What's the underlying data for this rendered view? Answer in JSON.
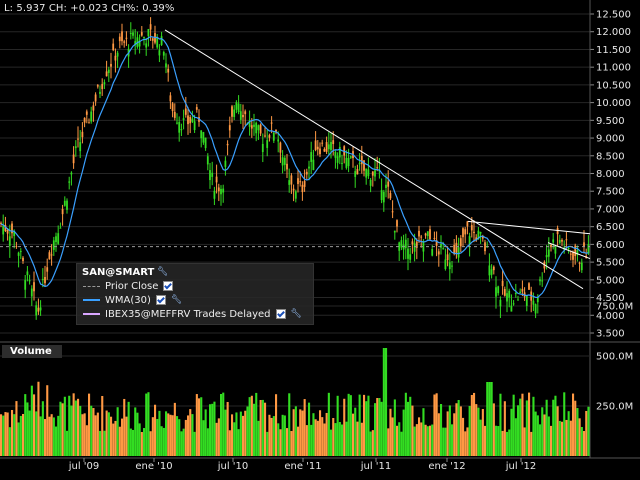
{
  "header": {
    "readout": "L: 5.937  CH: +0.023  CH%: 0.39%"
  },
  "legend": {
    "title": "SAN@SMART",
    "items": [
      {
        "label": "Prior Close",
        "color": "#9a9a9a",
        "style": "dashed"
      },
      {
        "label": "WMA(30)",
        "color": "#3aa0ff",
        "style": "solid"
      },
      {
        "label": "IBEX35@MEFFRV Trades Delayed",
        "color": "#d9a6ff",
        "style": "solid"
      }
    ]
  },
  "volume_panel": {
    "label": "Volume"
  },
  "price_axis": {
    "ticks": [
      "12.500",
      "12.000",
      "11.500",
      "11.000",
      "10.500",
      "10.000",
      "9.500",
      "9.000",
      "8.500",
      "8.000",
      "7.500",
      "7.000",
      "6.500",
      "6.000",
      "5.500",
      "5.000",
      "4.500",
      "4.000",
      "3.500"
    ]
  },
  "volume_axis": {
    "ticks": [
      "750.0M",
      "500.0M",
      "250.0M"
    ]
  },
  "time_axis": {
    "labels": [
      "jul '09",
      "ene '10",
      "jul '10",
      "ene '11",
      "jul '11",
      "ene '12",
      "jul '12"
    ]
  },
  "colors": {
    "up": "#33dd22",
    "down": "#ff9944",
    "wma": "#3aa0ff",
    "trend": "#ffffff"
  }
}
